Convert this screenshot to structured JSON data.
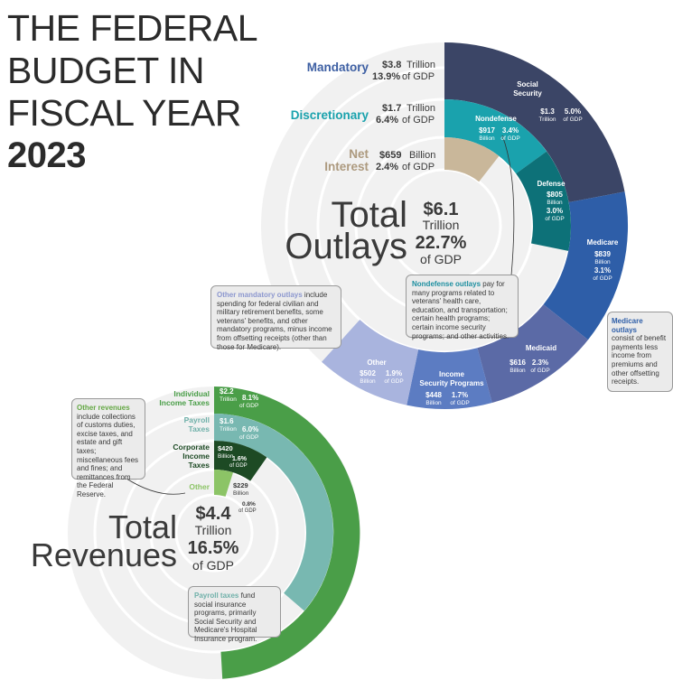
{
  "title": {
    "line1": "THE FEDERAL",
    "line2": "BUDGET IN",
    "line3": "FISCAL YEAR",
    "year": "2023"
  },
  "colors": {
    "social_security": "#3b4566",
    "medicare": "#2e5ea8",
    "medicaid": "#5b6aa6",
    "income_security": "#5c7cc2",
    "other_mandatory": "#a9b4de",
    "nondefense": "#1aa2ad",
    "defense": "#0d7178",
    "net_interest": "#c9b79a",
    "individual_income": "#4a9e48",
    "payroll": "#78b8b1",
    "corporate": "#1d4a24",
    "other_revenue": "#8cc466",
    "bg_circle": "#f1f1f1",
    "mandatory_label": "#3d5fa3",
    "discretionary_label": "#1aa2ad",
    "net_interest_label": "#ad9a7f",
    "nondefense_note_header": "#1d8fa0",
    "other_mandatory_note_header": "#8d98cf",
    "medicare_note_header": "#2e5ea8",
    "other_revenues_note_header": "#64a844",
    "payroll_note_header": "#6fb0a9"
  },
  "outlays": {
    "total_word": "Total",
    "label_word": "Outlays",
    "amount": "$6.1",
    "amount_unit": "Trillion",
    "pct": "22.7%",
    "pct_unit": "of GDP",
    "groups": [
      {
        "name": "Mandatory",
        "amount": "$3.8",
        "unit": "Trillion",
        "pct": "13.9%",
        "pct_unit": "of GDP"
      },
      {
        "name": "Discretionary",
        "amount": "$1.7",
        "unit": "Trillion",
        "pct": "6.4%",
        "pct_unit": "of GDP"
      },
      {
        "name_line1": "Net",
        "name_line2": "Interest",
        "amount": "$659",
        "unit": "Billion",
        "pct": "2.4%",
        "pct_unit": "of GDP"
      }
    ],
    "segments": {
      "social_security": {
        "name_line1": "Social",
        "name_line2": "Security",
        "amount": "$1.3",
        "unit": "Trillion",
        "pct": "5.0%",
        "pct_unit": "of GDP"
      },
      "medicare": {
        "name": "Medicare",
        "amount": "$839",
        "unit": "Billion",
        "pct": "3.1%",
        "pct_unit": "of GDP"
      },
      "medicaid": {
        "name": "Medicaid",
        "amount": "$616",
        "unit": "Billion",
        "pct": "2.3%",
        "pct_unit": "of GDP"
      },
      "income_security": {
        "name_line1": "Income",
        "name_line2": "Security Programs",
        "amount": "$448",
        "unit": "Billion",
        "pct": "1.7%",
        "pct_unit": "of GDP"
      },
      "other_mandatory": {
        "name": "Other",
        "amount": "$502",
        "unit": "Billion",
        "pct": "1.9%",
        "pct_unit": "of GDP"
      },
      "nondefense": {
        "name": "Nondefense",
        "amount": "$917",
        "unit": "Billion",
        "pct": "3.4%",
        "pct_unit": "of GDP"
      },
      "defense": {
        "name": "Defense",
        "amount": "$805",
        "unit": "Billion",
        "pct": "3.0%",
        "pct_unit": "of GDP"
      }
    }
  },
  "revenues": {
    "total_word": "Total",
    "label_word": "Revenues",
    "amount": "$4.4",
    "amount_unit": "Trillion",
    "pct": "16.5%",
    "pct_unit": "of GDP",
    "segments": {
      "individual": {
        "name_line1": "Individual",
        "name_line2": "Income Taxes",
        "amount": "$2.2",
        "unit": "Trillion",
        "pct": "8.1%",
        "pct_unit": "of GDP"
      },
      "payroll": {
        "name_line1": "Payroll",
        "name_line2": "Taxes",
        "amount": "$1.6",
        "unit": "Trillion",
        "pct": "6.0%",
        "pct_unit": "of GDP"
      },
      "corporate": {
        "name_line1": "Corporate",
        "name_line2": "Income",
        "name_line3": "Taxes",
        "amount": "$420",
        "unit": "Billion",
        "pct": "1.6%",
        "pct_unit": "of GDP"
      },
      "other": {
        "name": "Other",
        "amount": "$229",
        "unit": "Billion",
        "pct": "0.8%",
        "pct_unit": "of GDP"
      }
    }
  },
  "notes": {
    "nondefense": {
      "header": "Nondefense outlays",
      "body": " pay for many programs related to veterans' health care, education, and transportation; certain health programs; certain income security programs; and other activities."
    },
    "other_mandatory": {
      "header": "Other mandatory outlays",
      "body": " include spending for federal civilian and military retirement benefits, some veterans' benefits, and other mandatory programs, minus income from offsetting receipts (other than those for Medicare)."
    },
    "medicare": {
      "header": "Medicare outlays",
      "body": " consist of benefit payments less income from premiums and other offsetting receipts."
    },
    "other_revenues": {
      "header": "Other revenues",
      "body": " include collections of customs duties, excise taxes, and estate and gift taxes; miscellaneous fees and fines; and remittances from the Federal Reserve."
    },
    "payroll": {
      "header": "Payroll taxes",
      "body": " fund social insurance programs, primarily Social Security and Medicare's Hospital Insurance program."
    }
  },
  "chart_data": [
    {
      "type": "pie",
      "title": "Total Outlays",
      "total": 6.1,
      "total_unit": "Trillion",
      "total_pct_gdp": 22.7,
      "groups": [
        {
          "name": "Mandatory",
          "value": 3.8,
          "unit": "Trillion",
          "pct_gdp": 13.9
        },
        {
          "name": "Discretionary",
          "value": 1.7,
          "unit": "Trillion",
          "pct_gdp": 6.4
        },
        {
          "name": "Net Interest",
          "value": 659,
          "unit": "Billion",
          "pct_gdp": 2.4
        }
      ],
      "segments": [
        {
          "name": "Social Security",
          "group": "Mandatory",
          "value": 1300,
          "unit": "Billion",
          "pct_gdp": 5.0
        },
        {
          "name": "Medicare",
          "group": "Mandatory",
          "value": 839,
          "unit": "Billion",
          "pct_gdp": 3.1
        },
        {
          "name": "Medicaid",
          "group": "Mandatory",
          "value": 616,
          "unit": "Billion",
          "pct_gdp": 2.3
        },
        {
          "name": "Income Security Programs",
          "group": "Mandatory",
          "value": 448,
          "unit": "Billion",
          "pct_gdp": 1.7
        },
        {
          "name": "Other",
          "group": "Mandatory",
          "value": 502,
          "unit": "Billion",
          "pct_gdp": 1.9
        },
        {
          "name": "Nondefense",
          "group": "Discretionary",
          "value": 917,
          "unit": "Billion",
          "pct_gdp": 3.4
        },
        {
          "name": "Defense",
          "group": "Discretionary",
          "value": 805,
          "unit": "Billion",
          "pct_gdp": 3.0
        },
        {
          "name": "Net Interest",
          "group": "Net Interest",
          "value": 659,
          "unit": "Billion",
          "pct_gdp": 2.4
        }
      ]
    },
    {
      "type": "pie",
      "title": "Total Revenues",
      "total": 4.4,
      "total_unit": "Trillion",
      "total_pct_gdp": 16.5,
      "segments": [
        {
          "name": "Individual Income Taxes",
          "value": 2200,
          "unit": "Billion",
          "pct_gdp": 8.1
        },
        {
          "name": "Payroll Taxes",
          "value": 1600,
          "unit": "Billion",
          "pct_gdp": 6.0
        },
        {
          "name": "Corporate Income Taxes",
          "value": 420,
          "unit": "Billion",
          "pct_gdp": 1.6
        },
        {
          "name": "Other",
          "value": 229,
          "unit": "Billion",
          "pct_gdp": 0.8
        }
      ]
    }
  ]
}
